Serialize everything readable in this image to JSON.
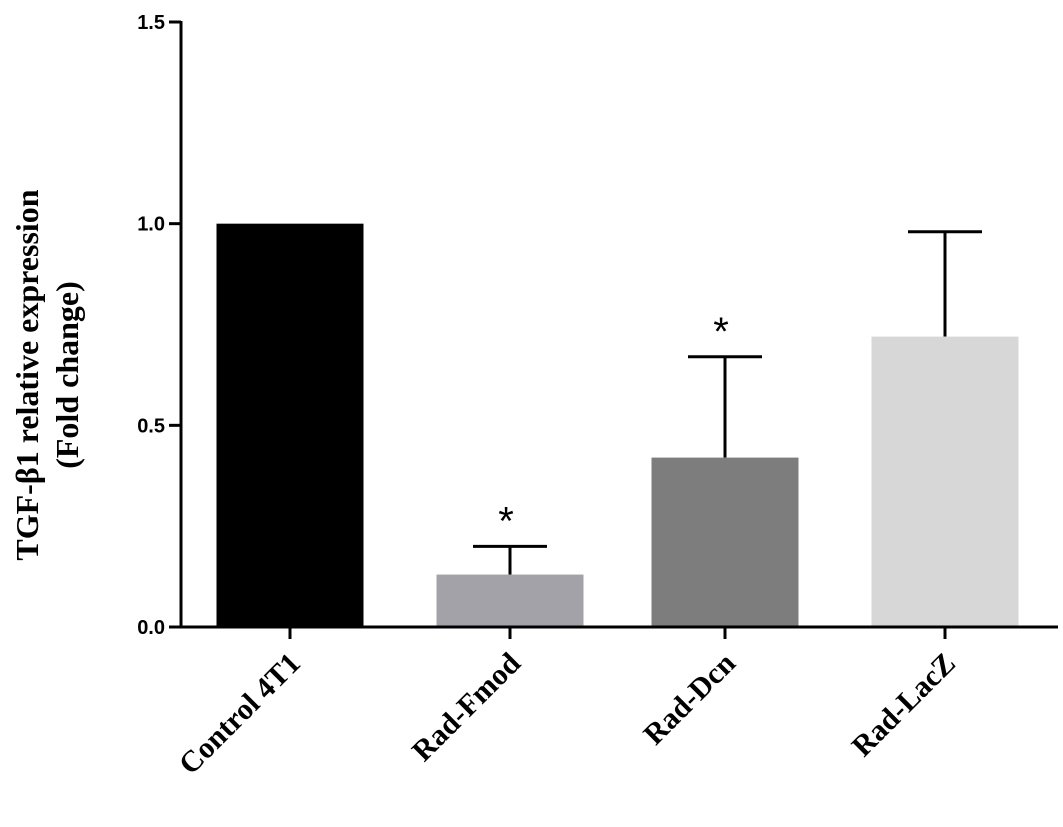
{
  "chart_data": {
    "type": "bar",
    "title": "",
    "ylabel_line1": "TGF-β1 relative expression",
    "ylabel_line2": "(Fold change)",
    "xlabel": "",
    "ylim": [
      0,
      1.5
    ],
    "yticks": [
      "0.0",
      "0.5",
      "1.0",
      "1.5"
    ],
    "ytick_values": [
      0,
      0.5,
      1.0,
      1.5
    ],
    "categories": [
      "Control 4T1",
      "Rad-Fmod",
      "Rad-Dcn",
      "Rad-LacZ"
    ],
    "values": [
      1.0,
      0.13,
      0.42,
      0.72
    ],
    "error_upper": [
      1.0,
      0.2,
      0.67,
      0.98
    ],
    "significance": [
      "",
      "*",
      "*",
      ""
    ],
    "colors": [
      "#000000",
      "#a3a2a8",
      "#7d7d7d",
      "#d7d7d7"
    ],
    "grid": false,
    "legend": "none"
  }
}
